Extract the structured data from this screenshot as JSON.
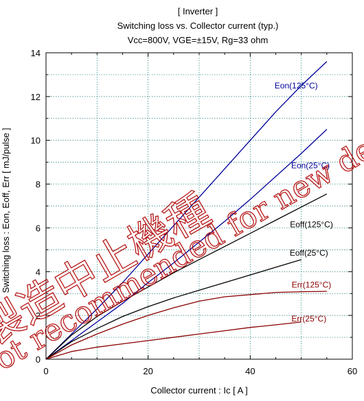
{
  "chart_data": {
    "type": "line",
    "title": "[ Inverter ]",
    "subtitle": "Switching loss  vs.  Collector current  (typ.)",
    "condition": "Vcc=800V, VGE=±15V, Rg=33 ohm",
    "xlabel": "Collector current  :  Ic  [ A ]",
    "ylabel": "Switching loss  :  Eon, Eoff, Err  [ mJ/pulse ]",
    "xlim": [
      0,
      60
    ],
    "ylim": [
      0,
      14
    ],
    "xticks": [
      0,
      20,
      40,
      60
    ],
    "yticks": [
      0,
      2,
      4,
      6,
      8,
      10,
      12,
      14
    ],
    "grid": true,
    "series": [
      {
        "name": "Eon(125°C)",
        "color": "#00009a",
        "x": [
          0,
          5,
          10,
          15,
          20,
          25,
          30,
          35,
          40,
          45,
          50,
          55
        ],
        "y": [
          0,
          1.15,
          2.3,
          3.5,
          4.8,
          6.1,
          7.4,
          8.7,
          10.0,
          11.3,
          12.5,
          13.6
        ]
      },
      {
        "name": "Eon(25°C)",
        "color": "#00009a",
        "x": [
          0,
          5,
          10,
          15,
          20,
          25,
          30,
          35,
          40,
          45,
          50,
          55
        ],
        "y": [
          0,
          0.85,
          1.7,
          2.55,
          3.5,
          4.4,
          5.35,
          6.3,
          7.3,
          8.35,
          9.4,
          10.5
        ]
      },
      {
        "name": "Eoff(125°C)",
        "color": "#000000",
        "x": [
          0,
          5,
          10,
          15,
          20,
          25,
          30,
          35,
          40,
          45,
          50,
          55
        ],
        "y": [
          0,
          1.1,
          1.95,
          2.65,
          3.3,
          3.95,
          4.55,
          5.15,
          5.75,
          6.35,
          6.95,
          7.55
        ]
      },
      {
        "name": "Eoff(25°C)",
        "color": "#000000",
        "x": [
          0,
          5,
          10,
          15,
          20,
          25,
          30,
          35,
          40,
          45,
          50
        ],
        "y": [
          0,
          0.8,
          1.4,
          1.95,
          2.4,
          2.8,
          3.15,
          3.5,
          3.85,
          4.2,
          4.55
        ]
      },
      {
        "name": "Err(125°C)",
        "color": "#8b0000",
        "x": [
          0,
          5,
          10,
          15,
          20,
          25,
          30,
          35,
          40,
          45,
          50,
          55
        ],
        "y": [
          0,
          0.65,
          1.15,
          1.6,
          2.0,
          2.35,
          2.65,
          2.85,
          2.95,
          3.05,
          3.08,
          3.1
        ]
      },
      {
        "name": "Err(25°C)",
        "color": "#8b0000",
        "x": [
          0,
          5,
          10,
          15,
          20,
          25,
          30,
          35,
          40,
          45,
          50
        ],
        "y": [
          0,
          0.35,
          0.55,
          0.7,
          0.85,
          1.0,
          1.15,
          1.3,
          1.45,
          1.57,
          1.7
        ]
      }
    ],
    "annotations": [
      {
        "text": "Eon(125°C)",
        "x": 49.0,
        "y": 12.5,
        "color": "#00009a"
      },
      {
        "text": "Eon(25°C)",
        "x": 51.8,
        "y": 8.85,
        "color": "#00009a"
      },
      {
        "text": "Eoff(125°C)",
        "x": 52.0,
        "y": 6.15,
        "color": "#000000"
      },
      {
        "text": "Eoff(25°C)",
        "x": 51.5,
        "y": 4.85,
        "color": "#000000"
      },
      {
        "text": "Err(125°C)",
        "x": 52.0,
        "y": 3.4,
        "color": "#8b0000"
      },
      {
        "text": "Err(25°C)",
        "x": 51.5,
        "y": 1.85,
        "color": "#8b0000"
      }
    ]
  },
  "watermark": {
    "line1": "製造中止機種",
    "line2": "Not recommended for new design.",
    "color": "#b00000"
  }
}
